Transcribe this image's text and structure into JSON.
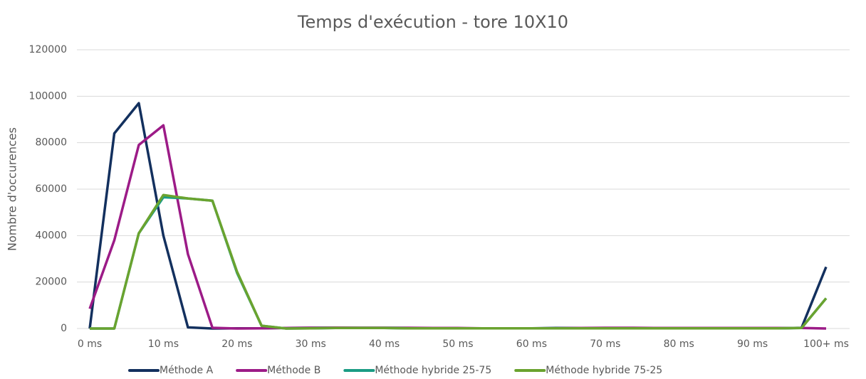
{
  "chart_data": {
    "type": "line",
    "title": "Temps d'exécution - tore 10X10",
    "y_label": "Nombre d'occurences",
    "categories": [
      "0 ms",
      null,
      null,
      "10 ms",
      null,
      null,
      "20 ms",
      null,
      null,
      "30 ms",
      null,
      null,
      "40 ms",
      null,
      null,
      "50 ms",
      null,
      null,
      "60 ms",
      null,
      null,
      "70 ms",
      null,
      null,
      "80 ms",
      null,
      null,
      "90 ms",
      null,
      null,
      "100+ ms"
    ],
    "ylim": [
      0,
      120000
    ],
    "yticks": [
      0,
      20000,
      40000,
      60000,
      80000,
      100000,
      120000
    ],
    "grid": true,
    "legend": "bottom",
    "series": [
      {
        "name": "Méthode A",
        "color": "#13305e",
        "values": [
          0,
          84000,
          97000,
          40000,
          500,
          0,
          100,
          100,
          200,
          300,
          300,
          300,
          300,
          200,
          200,
          100,
          100,
          100,
          100,
          200,
          200,
          200,
          200,
          200,
          200,
          100,
          100,
          100,
          100,
          300,
          26500
        ]
      },
      {
        "name": "Méthode B",
        "color": "#9c1b87",
        "values": [
          8500,
          38000,
          79000,
          87500,
          32000,
          300,
          0,
          100,
          200,
          300,
          400,
          300,
          300,
          300,
          200,
          200,
          100,
          100,
          100,
          100,
          200,
          300,
          300,
          200,
          200,
          200,
          200,
          200,
          200,
          200,
          0
        ]
      },
      {
        "name": "Méthode hybride 25-75",
        "color": "#1a9c84",
        "values": [
          0,
          0,
          41000,
          56500,
          56000,
          55000,
          24000,
          1200,
          0,
          100,
          200,
          200,
          200,
          100,
          100,
          100,
          100,
          100,
          100,
          100,
          100,
          100,
          100,
          100,
          100,
          100,
          100,
          100,
          100,
          200,
          13000
        ]
      },
      {
        "name": "Méthode hybride 75-25",
        "color": "#6aa32f",
        "values": [
          0,
          0,
          41000,
          57500,
          56000,
          55000,
          24500,
          1200,
          0,
          100,
          200,
          200,
          200,
          100,
          100,
          100,
          100,
          100,
          100,
          100,
          100,
          100,
          100,
          100,
          100,
          100,
          100,
          100,
          100,
          200,
          13000
        ]
      }
    ]
  }
}
